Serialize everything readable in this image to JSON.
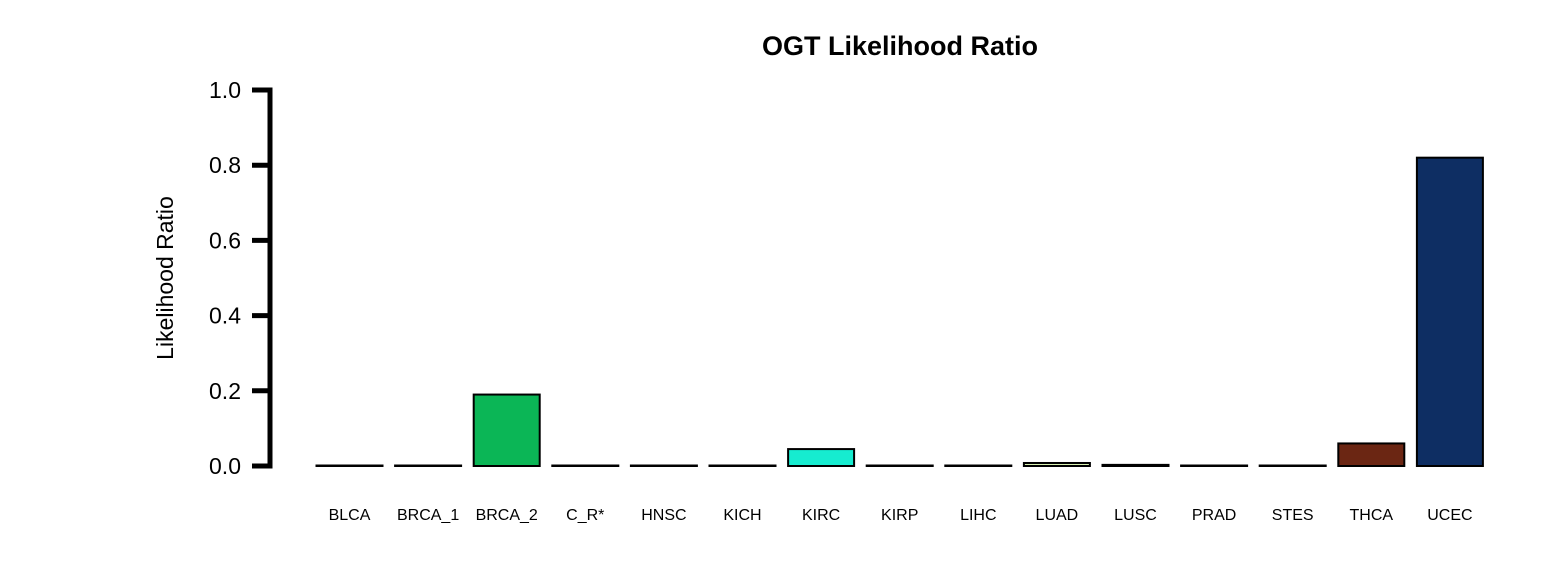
{
  "chart_data": {
    "type": "bar",
    "title": "OGT Likelihood Ratio",
    "xlabel": "",
    "ylabel": "Likelihood Ratio",
    "ylim": [
      0,
      1.0
    ],
    "yticks": [
      "0.0",
      "0.2",
      "0.4",
      "0.6",
      "0.8",
      "1.0"
    ],
    "grid": false,
    "categories": [
      "BLCA",
      "BRCA_1",
      "BRCA_2",
      "C_R*",
      "HNSC",
      "KICH",
      "KIRC",
      "KIRP",
      "LIHC",
      "LUAD",
      "LUSC",
      "PRAD",
      "STES",
      "THCA",
      "UCEC"
    ],
    "values": [
      0.0,
      0.0,
      0.19,
      0.0,
      0.0,
      0.0,
      0.045,
      0.0,
      0.0,
      0.008,
      0.003,
      0.0,
      0.0,
      0.06,
      0.82
    ],
    "colors": [
      "#ffffff",
      "#ffffff",
      "#0bb656",
      "#ffffff",
      "#ffffff",
      "#ffffff",
      "#16ecd0",
      "#ffffff",
      "#ffffff",
      "#d8f0b0",
      "#555555",
      "#ffffff",
      "#ffffff",
      "#6b2613",
      "#0e2e63"
    ]
  }
}
